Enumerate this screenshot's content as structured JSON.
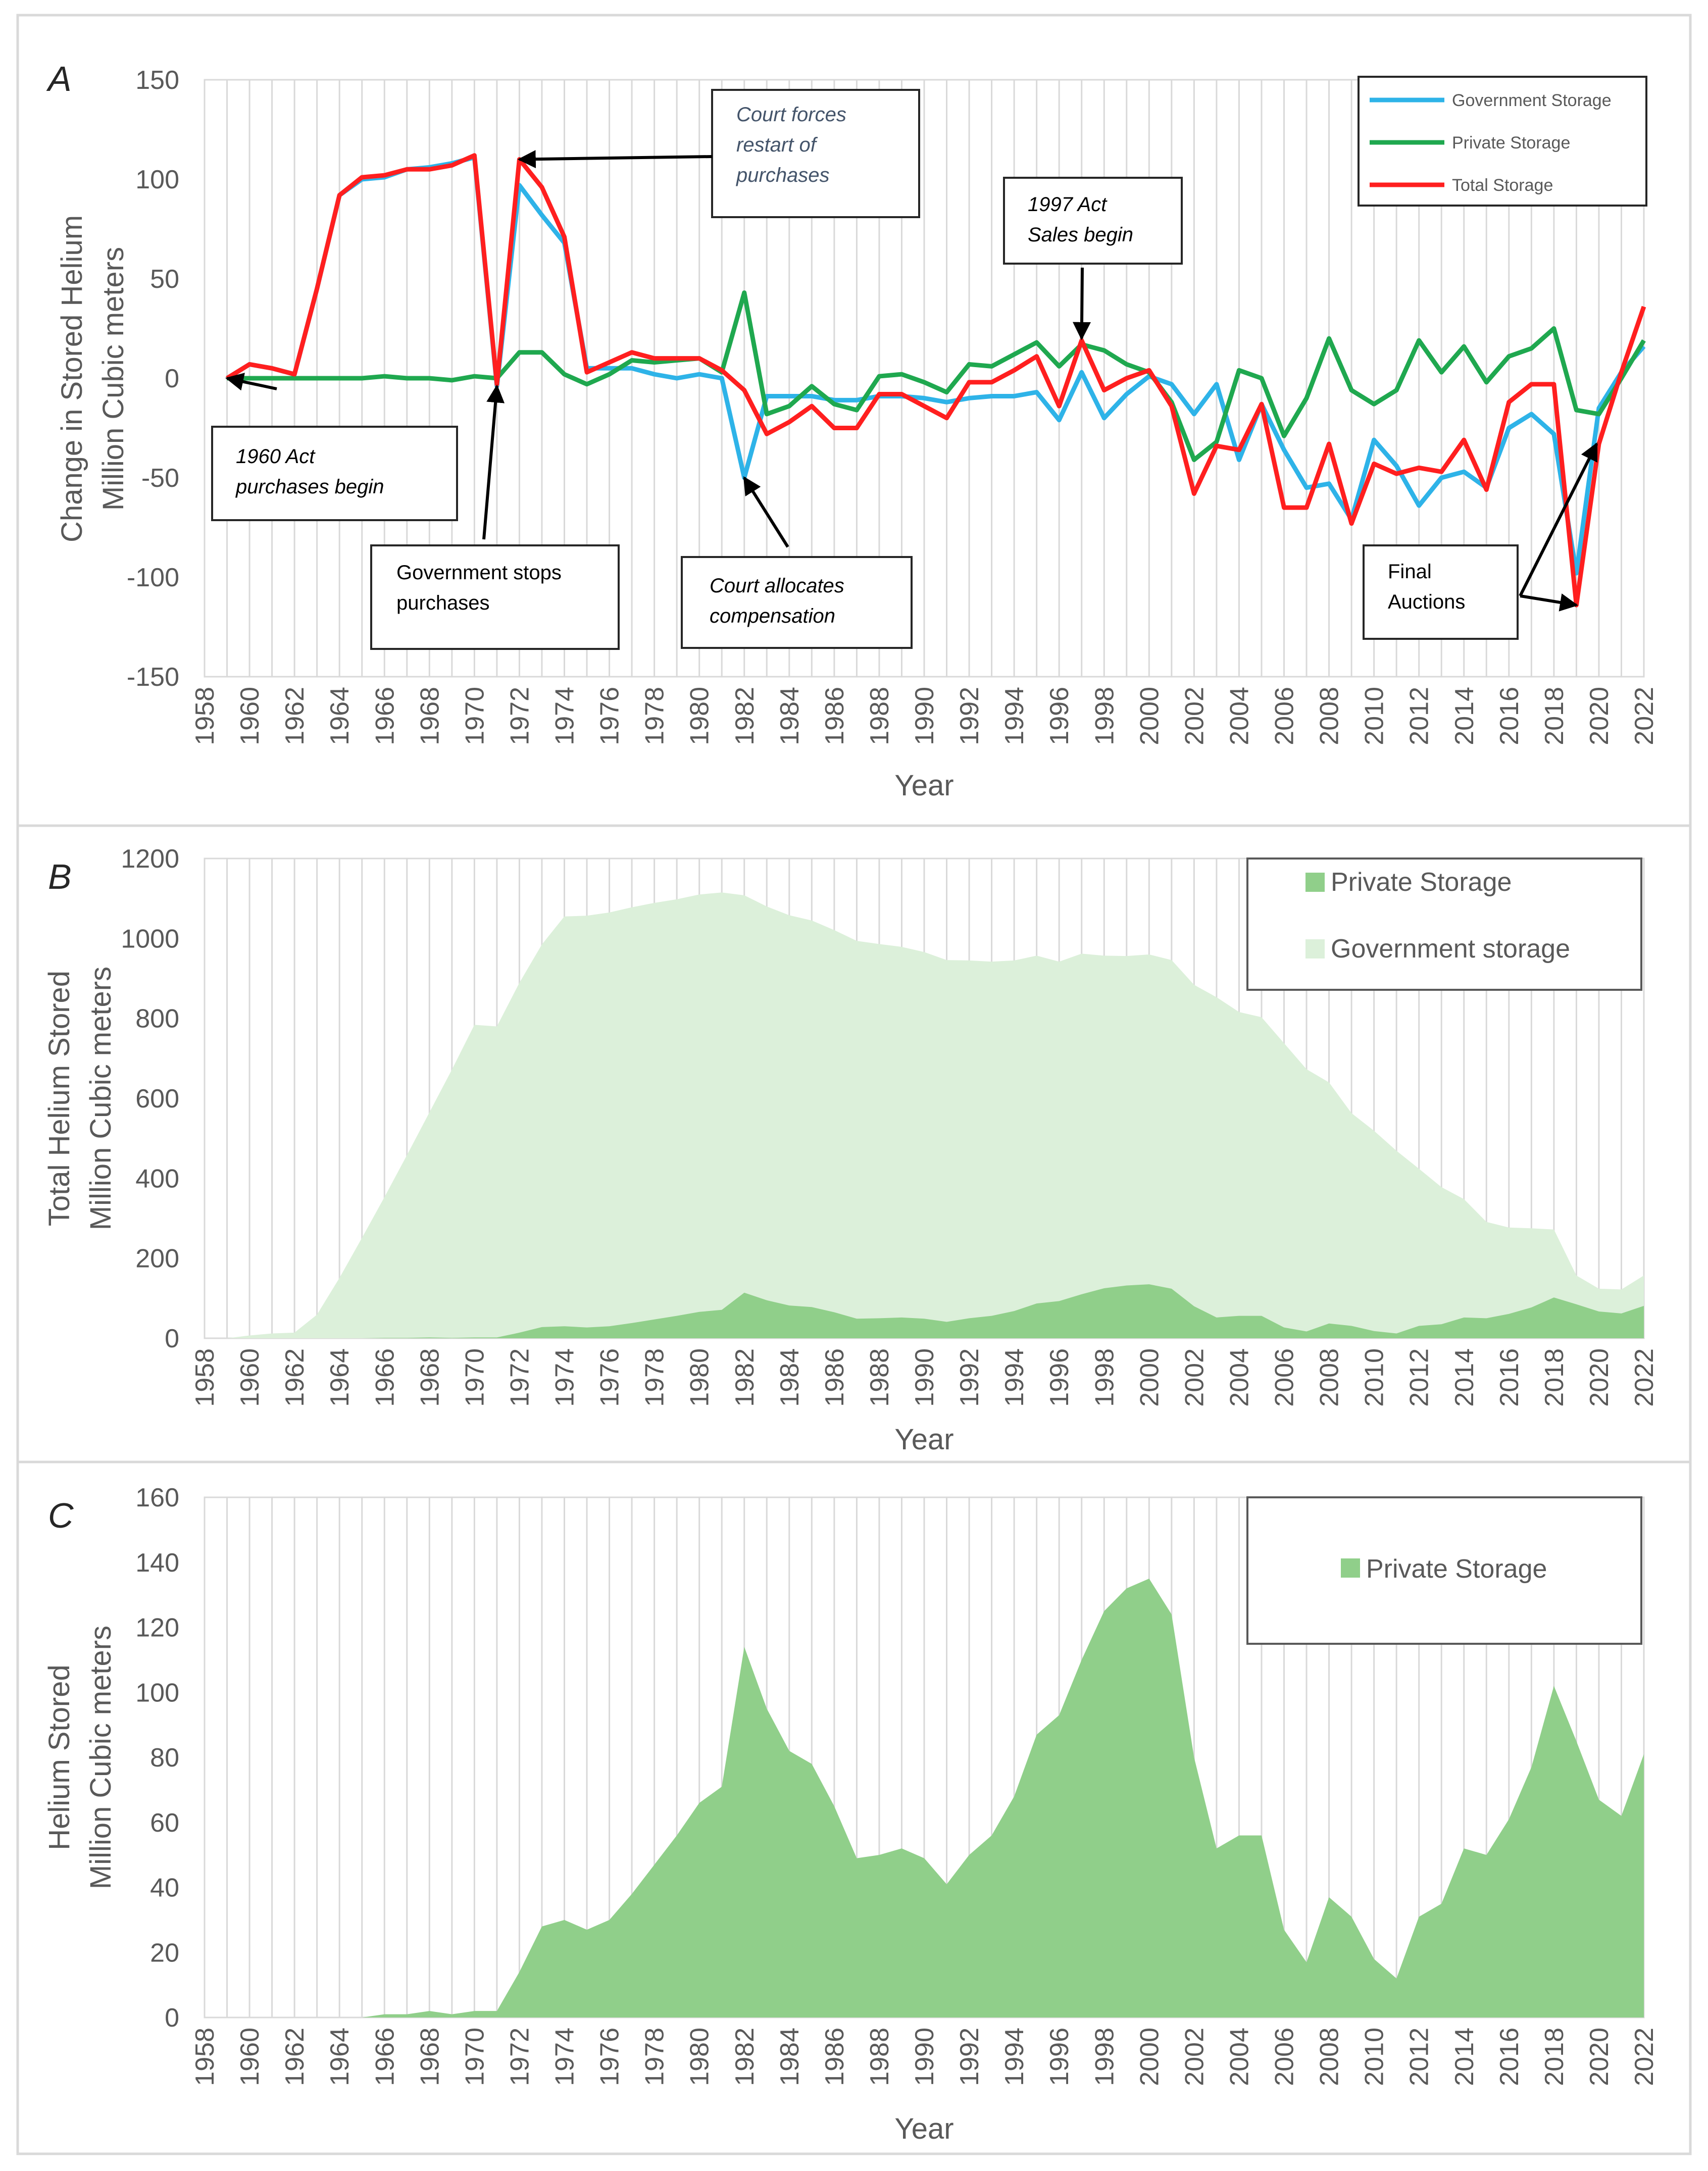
{
  "chart_data": [
    {
      "panel": "A",
      "type": "line",
      "ylabel": [
        "Change in Stored Helium",
        "Million Cubic meters"
      ],
      "xlabel": "Year",
      "ylim": [
        -150,
        150
      ],
      "yticks": [
        150,
        100,
        50,
        0,
        -50,
        -100,
        -150
      ],
      "xlim": [
        1958,
        2022
      ],
      "series": [
        {
          "name": "Government Storage",
          "color": "#2eb3e8",
          "x": [
            1959,
            1960,
            1961,
            1962,
            1963,
            1964,
            1965,
            1966,
            1967,
            1968,
            1969,
            1970,
            1971,
            1972,
            1973,
            1974,
            1975,
            1976,
            1977,
            1978,
            1979,
            1980,
            1981,
            1982,
            1983,
            1984,
            1985,
            1986,
            1987,
            1988,
            1989,
            1990,
            1991,
            1992,
            1993,
            1994,
            1995,
            1996,
            1997,
            1998,
            1999,
            2000,
            2001,
            2002,
            2003,
            2004,
            2005,
            2006,
            2007,
            2008,
            2009,
            2010,
            2011,
            2012,
            2013,
            2014,
            2015,
            2016,
            2017,
            2018,
            2019,
            2020,
            2021,
            2022
          ],
          "values": [
            0,
            7,
            5,
            2,
            45,
            92,
            100,
            101,
            105,
            106,
            108,
            111,
            -4,
            97,
            82,
            68,
            5,
            5,
            5,
            2,
            0,
            2,
            0,
            -50,
            -9,
            -9,
            -9,
            -11,
            -11,
            -9,
            -9,
            -10,
            -12,
            -10,
            -9,
            -9,
            -7,
            -21,
            3,
            -20,
            -8,
            1,
            -3,
            -18,
            -3,
            -41,
            -13,
            -36,
            -55,
            -53,
            -71,
            -31,
            -44,
            -64,
            -50,
            -47,
            -55,
            -25,
            -18,
            -28,
            -98,
            -15,
            3,
            16
          ]
        },
        {
          "name": "Private Storage",
          "color": "#1fa84f",
          "x": [
            1959,
            1960,
            1961,
            1962,
            1963,
            1964,
            1965,
            1966,
            1967,
            1968,
            1969,
            1970,
            1971,
            1972,
            1973,
            1974,
            1975,
            1976,
            1977,
            1978,
            1979,
            1980,
            1981,
            1982,
            1983,
            1984,
            1985,
            1986,
            1987,
            1988,
            1989,
            1990,
            1991,
            1992,
            1993,
            1994,
            1995,
            1996,
            1997,
            1998,
            1999,
            2000,
            2001,
            2002,
            2003,
            2004,
            2005,
            2006,
            2007,
            2008,
            2009,
            2010,
            2011,
            2012,
            2013,
            2014,
            2015,
            2016,
            2017,
            2018,
            2019,
            2020,
            2021,
            2022
          ],
          "values": [
            0,
            0,
            0,
            0,
            0,
            0,
            0,
            1,
            0,
            0,
            -1,
            1,
            0,
            13,
            13,
            2,
            -3,
            2,
            9,
            8,
            9,
            10,
            3,
            43,
            -18,
            -14,
            -4,
            -13,
            -16,
            1,
            2,
            -2,
            -7,
            7,
            6,
            12,
            18,
            6,
            17,
            14,
            7,
            3,
            -12,
            -41,
            -32,
            4,
            0,
            -29,
            -10,
            20,
            -6,
            -13,
            -6,
            19,
            3,
            16,
            -2,
            11,
            15,
            25,
            -16,
            -18,
            0,
            19
          ]
        },
        {
          "name": "Total Storage",
          "color": "#ff1f1f",
          "x": [
            1959,
            1960,
            1961,
            1962,
            1963,
            1964,
            1965,
            1966,
            1967,
            1968,
            1969,
            1970,
            1971,
            1972,
            1973,
            1974,
            1975,
            1976,
            1977,
            1978,
            1979,
            1980,
            1981,
            1982,
            1983,
            1984,
            1985,
            1986,
            1987,
            1988,
            1989,
            1990,
            1991,
            1992,
            1993,
            1994,
            1995,
            1996,
            1997,
            1998,
            1999,
            2000,
            2001,
            2002,
            2003,
            2004,
            2005,
            2006,
            2007,
            2008,
            2009,
            2010,
            2011,
            2012,
            2013,
            2014,
            2015,
            2016,
            2017,
            2018,
            2019,
            2020,
            2021,
            2022
          ],
          "values": [
            0,
            7,
            5,
            2,
            45,
            92,
            101,
            102,
            105,
            105,
            107,
            112,
            -3,
            110,
            96,
            71,
            3,
            8,
            13,
            10,
            10,
            10,
            4,
            -6,
            -28,
            -22,
            -14,
            -25,
            -25,
            -8,
            -8,
            -14,
            -20,
            -2,
            -2,
            4,
            11,
            -14,
            19,
            -6,
            0,
            4,
            -14,
            -58,
            -34,
            -36,
            -13,
            -65,
            -65,
            -33,
            -73,
            -43,
            -48,
            -45,
            -47,
            -31,
            -56,
            -12,
            -3,
            -3,
            -114,
            -33,
            3,
            36
          ]
        }
      ],
      "annotations": [
        {
          "text": [
            "1960 Act",
            "purchases begin"
          ],
          "italic": true,
          "arrow_to": [
            1959,
            0
          ]
        },
        {
          "text": [
            "Government stops",
            "purchases"
          ],
          "italic": false,
          "arrow_to": [
            1971,
            -4
          ]
        },
        {
          "text": [
            "Court forces",
            "restart of",
            "purchases"
          ],
          "italic": true,
          "arrow_to": [
            1972,
            110
          ]
        },
        {
          "text": [
            "Court allocates",
            "compensation"
          ],
          "italic": true,
          "arrow_to": [
            1982,
            -50
          ]
        },
        {
          "text": [
            "1997 Act",
            "Sales begin"
          ],
          "italic": true,
          "arrow_to": [
            1997,
            20
          ]
        },
        {
          "text": [
            "Final",
            "Auctions"
          ],
          "italic": false,
          "arrow_to": [
            2019,
            -114
          ]
        }
      ]
    },
    {
      "panel": "B",
      "type": "area",
      "ylabel": [
        "Total Helium Stored",
        "Million Cubic meters"
      ],
      "xlabel": "Year",
      "ylim": [
        0,
        1200
      ],
      "yticks": [
        1200,
        1000,
        800,
        600,
        400,
        200,
        0
      ],
      "xlim": [
        1958,
        2022
      ],
      "series": [
        {
          "name": "Private Storage",
          "color": "#90cf8a",
          "x": [
            1959,
            1960,
            1961,
            1962,
            1963,
            1964,
            1965,
            1966,
            1967,
            1968,
            1969,
            1970,
            1971,
            1972,
            1973,
            1974,
            1975,
            1976,
            1977,
            1978,
            1979,
            1980,
            1981,
            1982,
            1983,
            1984,
            1985,
            1986,
            1987,
            1988,
            1989,
            1990,
            1991,
            1992,
            1993,
            1994,
            1995,
            1996,
            1997,
            1998,
            1999,
            2000,
            2001,
            2002,
            2003,
            2004,
            2005,
            2006,
            2007,
            2008,
            2009,
            2010,
            2011,
            2012,
            2013,
            2014,
            2015,
            2016,
            2017,
            2018,
            2019,
            2020,
            2021,
            2022
          ],
          "values": [
            0,
            0,
            0,
            0,
            0,
            0,
            0,
            1,
            1,
            2,
            1,
            2,
            2,
            14,
            28,
            30,
            27,
            30,
            38,
            47,
            56,
            66,
            71,
            114,
            95,
            82,
            78,
            65,
            49,
            50,
            52,
            49,
            41,
            50,
            56,
            68,
            87,
            93,
            110,
            125,
            132,
            135,
            124,
            80,
            52,
            56,
            56,
            27,
            17,
            37,
            31,
            18,
            12,
            31,
            35,
            52,
            50,
            61,
            77,
            102,
            85,
            67,
            62,
            81
          ]
        },
        {
          "name": "Government storage",
          "color": "#dcf0da",
          "x": [
            1959,
            1960,
            1961,
            1962,
            1963,
            1964,
            1965,
            1966,
            1967,
            1968,
            1969,
            1970,
            1971,
            1972,
            1973,
            1974,
            1975,
            1976,
            1977,
            1978,
            1979,
            1980,
            1981,
            1982,
            1983,
            1984,
            1985,
            1986,
            1987,
            1988,
            1989,
            1990,
            1991,
            1992,
            1993,
            1994,
            1995,
            1996,
            1997,
            1998,
            1999,
            2000,
            2001,
            2002,
            2003,
            2004,
            2005,
            2006,
            2007,
            2008,
            2009,
            2010,
            2011,
            2012,
            2013,
            2014,
            2015,
            2016,
            2017,
            2018,
            2019,
            2020,
            2021,
            2022
          ],
          "values": [
            0,
            7,
            12,
            14,
            59,
            151,
            251,
            352,
            457,
            563,
            671,
            782,
            778,
            875,
            957,
            1025,
            1030,
            1035,
            1040,
            1042,
            1042,
            1044,
            1044,
            994,
            985,
            976,
            967,
            956,
            945,
            936,
            927,
            917,
            905,
            895,
            886,
            877,
            870,
            849,
            852,
            832,
            824,
            825,
            822,
            804,
            801,
            760,
            747,
            711,
            656,
            603,
            532,
            501,
            457,
            393,
            343,
            296,
            241,
            216,
            198,
            170,
            72,
            57,
            60,
            76
          ]
        }
      ]
    },
    {
      "panel": "C",
      "type": "area",
      "ylabel": [
        "Helium Stored",
        "Million Cubic meters"
      ],
      "xlabel": "Year",
      "ylim": [
        0,
        160
      ],
      "yticks": [
        160,
        140,
        120,
        100,
        80,
        60,
        40,
        20,
        0
      ],
      "xlim": [
        1958,
        2022
      ],
      "series": [
        {
          "name": "Private Storage",
          "color": "#90cf8a",
          "x": [
            1959,
            1960,
            1961,
            1962,
            1963,
            1964,
            1965,
            1966,
            1967,
            1968,
            1969,
            1970,
            1971,
            1972,
            1973,
            1974,
            1975,
            1976,
            1977,
            1978,
            1979,
            1980,
            1981,
            1982,
            1983,
            1984,
            1985,
            1986,
            1987,
            1988,
            1989,
            1990,
            1991,
            1992,
            1993,
            1994,
            1995,
            1996,
            1997,
            1998,
            1999,
            2000,
            2001,
            2002,
            2003,
            2004,
            2005,
            2006,
            2007,
            2008,
            2009,
            2010,
            2011,
            2012,
            2013,
            2014,
            2015,
            2016,
            2017,
            2018,
            2019,
            2020,
            2021,
            2022
          ],
          "values": [
            0,
            0,
            0,
            0,
            0,
            0,
            0,
            1,
            1,
            2,
            1,
            2,
            2,
            14,
            28,
            30,
            27,
            30,
            38,
            47,
            56,
            66,
            71,
            114,
            95,
            82,
            78,
            65,
            49,
            50,
            52,
            49,
            41,
            50,
            56,
            68,
            87,
            93,
            110,
            125,
            132,
            135,
            124,
            80,
            52,
            56,
            56,
            27,
            17,
            37,
            31,
            18,
            12,
            31,
            35,
            52,
            50,
            61,
            77,
            102,
            85,
            67,
            62,
            81
          ]
        }
      ]
    }
  ],
  "xticks": [
    "1958",
    "1960",
    "1962",
    "1964",
    "1966",
    "1968",
    "1970",
    "1972",
    "1974",
    "1976",
    "1978",
    "1980",
    "1982",
    "1984",
    "1986",
    "1988",
    "1990",
    "1992",
    "1994",
    "1996",
    "1998",
    "2000",
    "2002",
    "2004",
    "2006",
    "2008",
    "2010",
    "2012",
    "2014",
    "2016",
    "2018",
    "2020",
    "2022"
  ]
}
